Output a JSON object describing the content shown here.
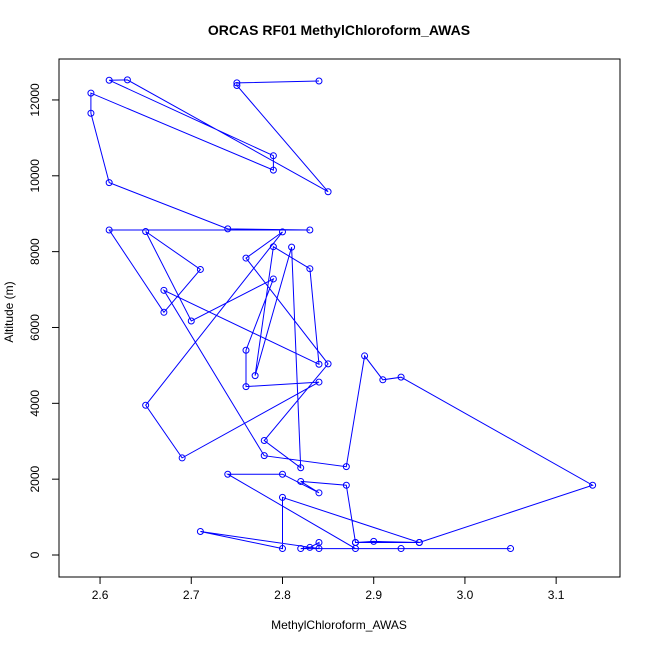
{
  "chart_data": {
    "type": "line",
    "title": "ORCAS RF01 MethylChloroform_AWAS",
    "xlabel": "MethylChloroform_AWAS",
    "ylabel": "Altitude (m)",
    "xlim": [
      2.555,
      3.17
    ],
    "ylim": [
      -580,
      13080
    ],
    "xticks": [
      2.6,
      2.7,
      2.8,
      2.9,
      3.0,
      3.1
    ],
    "xtick_labels": [
      "2.6",
      "2.7",
      "2.8",
      "2.9",
      "3.0",
      "3.1"
    ],
    "yticks": [
      0,
      2000,
      4000,
      6000,
      8000,
      10000,
      12000
    ],
    "ytick_labels": [
      "0",
      "2000",
      "4000",
      "6000",
      "8000",
      "10000",
      "12000"
    ],
    "grid": false,
    "marker": "open-circle",
    "color": "#0000ff",
    "series": [
      {
        "x": [
          2.84,
          2.75,
          2.75,
          2.85,
          2.63,
          2.61,
          2.79,
          2.79,
          2.59,
          2.59,
          2.61,
          2.74,
          2.83,
          2.61,
          2.67,
          2.71,
          2.65,
          2.7,
          2.79,
          2.76,
          2.76,
          2.84,
          2.69,
          2.65,
          2.8,
          2.76,
          2.85,
          2.78,
          2.82,
          2.81,
          2.77,
          2.79,
          2.83,
          2.84,
          2.67,
          2.78,
          2.87,
          2.89,
          2.91,
          2.93,
          3.14,
          2.95,
          2.88,
          2.87,
          2.82,
          2.84,
          2.8,
          2.74,
          2.88,
          3.05,
          2.93,
          2.82,
          2.83,
          2.84,
          2.84,
          2.71,
          2.8,
          2.8,
          2.95,
          2.9,
          2.88
        ],
        "y": [
          12500,
          12450,
          12380,
          9580,
          12530,
          12520,
          10530,
          10150,
          12180,
          11650,
          9820,
          8600,
          8570,
          8570,
          6400,
          7530,
          8530,
          6170,
          7280,
          5400,
          4440,
          4560,
          2560,
          3950,
          8520,
          7830,
          5040,
          3020,
          2300,
          8120,
          4730,
          8130,
          7550,
          5030,
          6980,
          2620,
          2330,
          5250,
          4620,
          4690,
          1840,
          330,
          330,
          1840,
          1940,
          1640,
          2130,
          2130,
          170,
          170,
          170,
          170,
          200,
          330,
          170,
          620,
          170,
          1520,
          330,
          360,
          330
        ]
      }
    ]
  }
}
